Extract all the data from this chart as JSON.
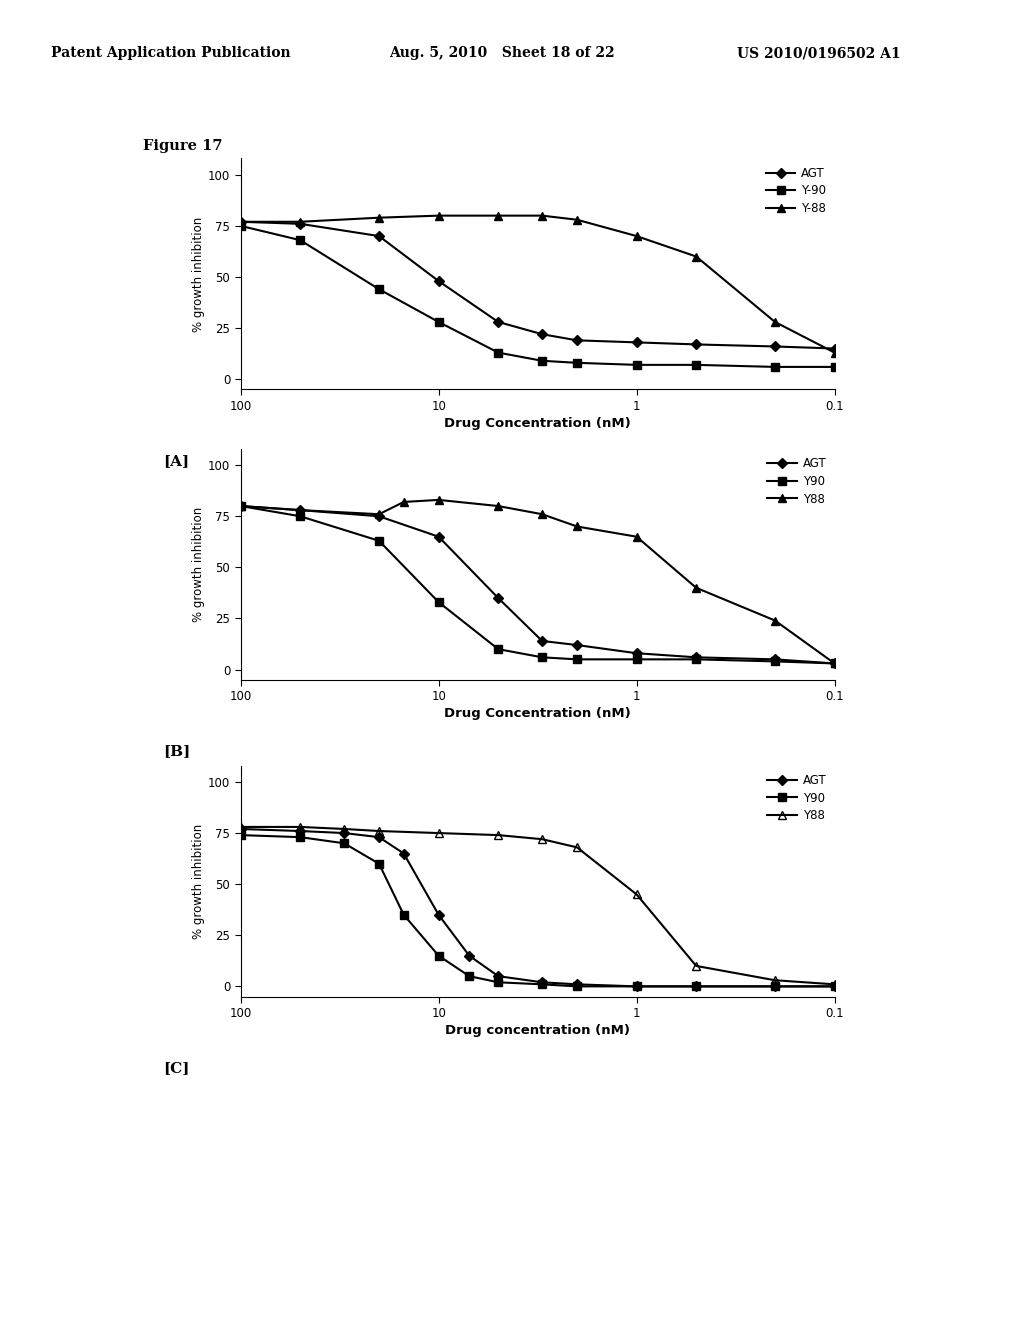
{
  "header_left": "Patent Application Publication",
  "header_mid": "Aug. 5, 2010   Sheet 18 of 22",
  "header_right": "US 2010/0196502 A1",
  "figure_label": "Figure 17",
  "ylabel": "% growth inhibition",
  "xlabel_A": "Drug Concentration (nM)",
  "xlabel_B": "Drug Concentration (nM)",
  "xlabel_C": "Drug concentration (nM)",
  "background_color": "#ffffff",
  "panel_A": {
    "legend": [
      "AGT",
      "Y-90",
      "Y-88"
    ],
    "markers": [
      "D",
      "s",
      "^"
    ],
    "x_AGT": [
      100,
      50,
      20,
      10,
      5,
      3,
      2,
      1,
      0.5,
      0.2,
      0.1
    ],
    "y_AGT": [
      77,
      76,
      70,
      48,
      28,
      22,
      19,
      18,
      17,
      16,
      15
    ],
    "x_Y90": [
      100,
      50,
      20,
      10,
      5,
      3,
      2,
      1,
      0.5,
      0.2,
      0.1
    ],
    "y_Y90": [
      75,
      68,
      44,
      28,
      13,
      9,
      8,
      7,
      7,
      6,
      6
    ],
    "x_Y88": [
      100,
      50,
      20,
      10,
      5,
      3,
      2,
      1,
      0.5,
      0.2,
      0.1
    ],
    "y_Y88": [
      77,
      77,
      79,
      80,
      80,
      80,
      78,
      70,
      60,
      28,
      13
    ]
  },
  "panel_B": {
    "legend": [
      "AGT",
      "Y90",
      "Y88"
    ],
    "markers": [
      "D",
      "s",
      "^"
    ],
    "x_AGT": [
      100,
      50,
      20,
      10,
      5,
      3,
      2,
      1,
      0.5,
      0.2,
      0.1
    ],
    "y_AGT": [
      80,
      78,
      75,
      65,
      35,
      14,
      12,
      8,
      6,
      5,
      3
    ],
    "x_Y90": [
      100,
      50,
      20,
      10,
      5,
      3,
      2,
      1,
      0.5,
      0.2,
      0.1
    ],
    "y_Y90": [
      80,
      75,
      63,
      33,
      10,
      6,
      5,
      5,
      5,
      4,
      3
    ],
    "x_Y88": [
      100,
      50,
      20,
      15,
      10,
      5,
      3,
      2,
      1,
      0.5,
      0.2,
      0.1
    ],
    "y_Y88": [
      80,
      78,
      76,
      82,
      83,
      80,
      76,
      70,
      65,
      40,
      24,
      3
    ]
  },
  "panel_C": {
    "legend": [
      "AGT",
      "Y90",
      "Y88"
    ],
    "markers": [
      "D",
      "s",
      "^"
    ],
    "open_Y88": true,
    "x_AGT": [
      100,
      50,
      30,
      20,
      15,
      10,
      7,
      5,
      3,
      2,
      1,
      0.5,
      0.2,
      0.1
    ],
    "y_AGT": [
      77,
      76,
      75,
      73,
      65,
      35,
      15,
      5,
      2,
      1,
      0,
      0,
      0,
      0
    ],
    "x_Y90": [
      100,
      50,
      30,
      20,
      15,
      10,
      7,
      5,
      3,
      2,
      1,
      0.5,
      0.2,
      0.1
    ],
    "y_Y90": [
      74,
      73,
      70,
      60,
      35,
      15,
      5,
      2,
      1,
      0,
      0,
      0,
      0,
      0
    ],
    "x_Y88": [
      100,
      50,
      30,
      20,
      10,
      5,
      3,
      2,
      1,
      0.5,
      0.2,
      0.1
    ],
    "y_Y88": [
      78,
      78,
      77,
      76,
      75,
      74,
      72,
      68,
      45,
      10,
      3,
      1
    ]
  }
}
